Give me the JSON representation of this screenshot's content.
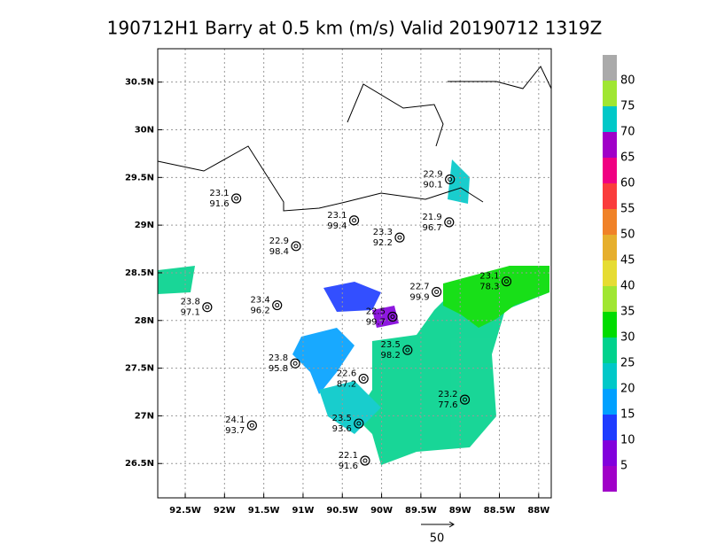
{
  "chart_data": {
    "type": "map",
    "title": "190712H1 Barry at 0.5 km (m/s) Valid 20190712 1319Z",
    "xlim": [
      -92.85,
      -87.84
    ],
    "ylim": [
      26.14,
      30.85
    ],
    "xticks": [
      {
        "value": -92.5,
        "label": "92.5W"
      },
      {
        "value": -92,
        "label": "92W"
      },
      {
        "value": -91.5,
        "label": "91.5W"
      },
      {
        "value": -91,
        "label": "91W"
      },
      {
        "value": -90.5,
        "label": "90.5W"
      },
      {
        "value": -90,
        "label": "90W"
      },
      {
        "value": -89.5,
        "label": "89.5W"
      },
      {
        "value": -89,
        "label": "89W"
      },
      {
        "value": -88.5,
        "label": "88.5W"
      },
      {
        "value": -88,
        "label": "88W"
      }
    ],
    "yticks": [
      {
        "value": 26.5,
        "label": "26.5N"
      },
      {
        "value": 27,
        "label": "27N"
      },
      {
        "value": 27.5,
        "label": "27.5N"
      },
      {
        "value": 28,
        "label": "28N"
      },
      {
        "value": 28.5,
        "label": "28.5N"
      },
      {
        "value": 29,
        "label": "29N"
      },
      {
        "value": 29.5,
        "label": "29.5N"
      },
      {
        "value": 30,
        "label": "30N"
      },
      {
        "value": 30.5,
        "label": "30.5N"
      }
    ],
    "grid": true,
    "colorbar": {
      "levels": [
        5,
        10,
        15,
        20,
        25,
        30,
        35,
        40,
        45,
        50,
        55,
        60,
        65,
        70,
        75,
        80
      ],
      "colors": [
        "#a000c8",
        "#8200dc",
        "#1e3cff",
        "#00a0ff",
        "#00c8c8",
        "#00d28c",
        "#00dc00",
        "#a0e632",
        "#e6dc32",
        "#e6af2d",
        "#f08228",
        "#fa3c3c",
        "#f00082",
        "#a000c8",
        "#00c8c8",
        "#a0e632",
        "#aaaaaa"
      ]
    },
    "stations": [
      {
        "lon": -91.85,
        "lat": 29.28,
        "t": 23.1,
        "p": 91.6
      },
      {
        "lon": -90.35,
        "lat": 29.05,
        "t": 23.1,
        "p": 99.4
      },
      {
        "lon": -91.09,
        "lat": 28.78,
        "t": 22.9,
        "p": 98.4
      },
      {
        "lon": -89.77,
        "lat": 28.87,
        "t": 23.3,
        "p": 92.2
      },
      {
        "lon": -89.13,
        "lat": 29.48,
        "t": 22.9,
        "p": 90.1
      },
      {
        "lon": -89.14,
        "lat": 29.03,
        "t": 21.9,
        "p": 96.7
      },
      {
        "lon": -92.22,
        "lat": 28.14,
        "t": 23.8,
        "p": 97.1
      },
      {
        "lon": -91.33,
        "lat": 28.16,
        "t": 23.4,
        "p": 96.2
      },
      {
        "lon": -88.41,
        "lat": 28.41,
        "t": 23.1,
        "p": 78.3
      },
      {
        "lon": -89.3,
        "lat": 28.3,
        "t": 22.7,
        "p": 99.9
      },
      {
        "lon": -89.86,
        "lat": 28.04,
        "t": 22.5,
        "p": 99.7
      },
      {
        "lon": -89.67,
        "lat": 27.69,
        "t": 23.5,
        "p": 98.2
      },
      {
        "lon": -91.1,
        "lat": 27.55,
        "t": 23.8,
        "p": 95.8
      },
      {
        "lon": -90.23,
        "lat": 27.39,
        "t": 22.6,
        "p": 87.2
      },
      {
        "lon": -88.94,
        "lat": 27.17,
        "t": 23.2,
        "p": 77.6
      },
      {
        "lon": -91.65,
        "lat": 26.9,
        "t": 24.1,
        "p": 93.7
      },
      {
        "lon": -90.29,
        "lat": 26.92,
        "t": 23.5,
        "p": 93.6
      },
      {
        "lon": -90.21,
        "lat": 26.53,
        "t": 22.1,
        "p": 91.6
      }
    ],
    "reference_vector": 50
  }
}
